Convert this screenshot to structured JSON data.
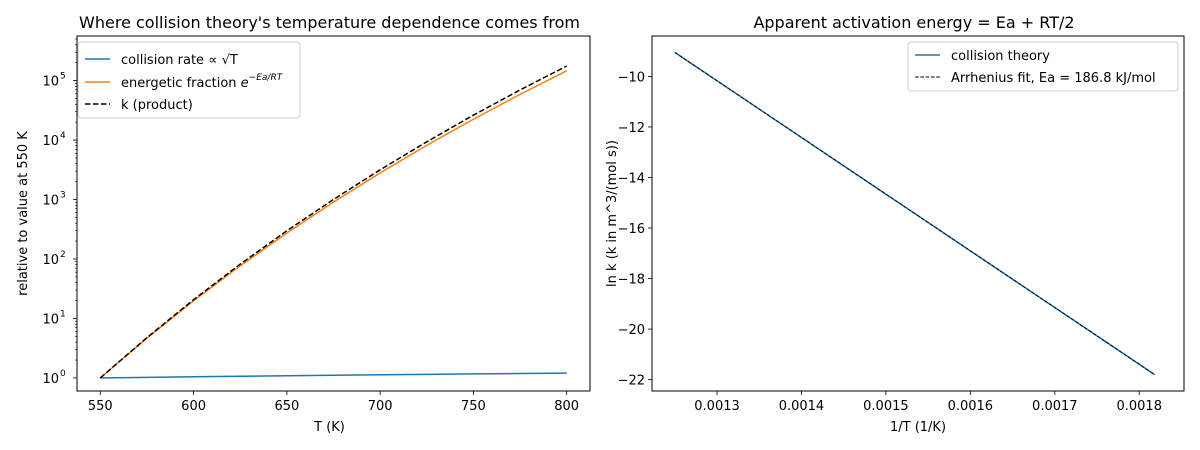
{
  "chart_data": [
    {
      "type": "line",
      "title": "Where collision theory's temperature dependence comes from",
      "xlabel": "T (K)",
      "ylabel": "relative to value at 550 K",
      "xlim": [
        537.5,
        812.5
      ],
      "ylim_log10": [
        -0.22,
        5.75
      ],
      "yscale": "log",
      "legend_position": "top-left",
      "xticks": [
        "550",
        "600",
        "650",
        "700",
        "750",
        "800"
      ],
      "yticks": [
        {
          "base": "10",
          "exp": "0"
        },
        {
          "base": "10",
          "exp": "1"
        },
        {
          "base": "10",
          "exp": "2"
        },
        {
          "base": "10",
          "exp": "3"
        },
        {
          "base": "10",
          "exp": "4"
        },
        {
          "base": "10",
          "exp": "5"
        }
      ],
      "x": [
        550,
        575,
        600,
        625,
        650,
        675,
        700,
        725,
        750,
        775,
        800
      ],
      "series": [
        {
          "name": "collision rate",
          "name_math": "∝ √T",
          "color": "#1f77b4",
          "style": "solid",
          "values": [
            1.0,
            1.022,
            1.044,
            1.066,
            1.087,
            1.108,
            1.128,
            1.148,
            1.168,
            1.187,
            1.206
          ]
        },
        {
          "name": "energetic fraction",
          "name_math": "e",
          "name_sup": "−Ea/RT",
          "color": "#ff7f0e",
          "style": "solid",
          "values": [
            1.0,
            4.66,
            19.8,
            76.8,
            274,
            906,
            2800,
            8140,
            22400,
            58600,
            146000
          ]
        },
        {
          "name": "k (product)",
          "color": "#000000",
          "style": "dashed",
          "values": [
            1.0,
            4.76,
            20.7,
            81.9,
            298,
            1003,
            3160,
            9350,
            26200,
            69600,
            176000
          ]
        }
      ]
    },
    {
      "type": "line",
      "title": "Apparent activation energy = Ea + RT/2",
      "xlabel": "1/T (1/K)",
      "ylabel": "ln k  (k in m^3/(mol s))",
      "xlim": [
        0.001223,
        0.001853
      ],
      "ylim": [
        -22.45,
        -8.4
      ],
      "legend_position": "top-right",
      "xticks": [
        "0.0013",
        "0.0014",
        "0.0015",
        "0.0016",
        "0.0017",
        "0.0018"
      ],
      "yticks": [
        "−10",
        "−12",
        "−14",
        "−16",
        "−18",
        "−20",
        "−22"
      ],
      "x": [
        0.00125,
        0.0018182
      ],
      "series": [
        {
          "name": "collision theory",
          "color": "#1f77b4",
          "style": "solid",
          "values": [
            -9.05,
            -21.8
          ]
        },
        {
          "name": "Arrhenius fit, Ea = 186.8 kJ/mol",
          "color": "#000000",
          "style": "dashed",
          "values": [
            -9.05,
            -21.8
          ]
        }
      ]
    }
  ]
}
